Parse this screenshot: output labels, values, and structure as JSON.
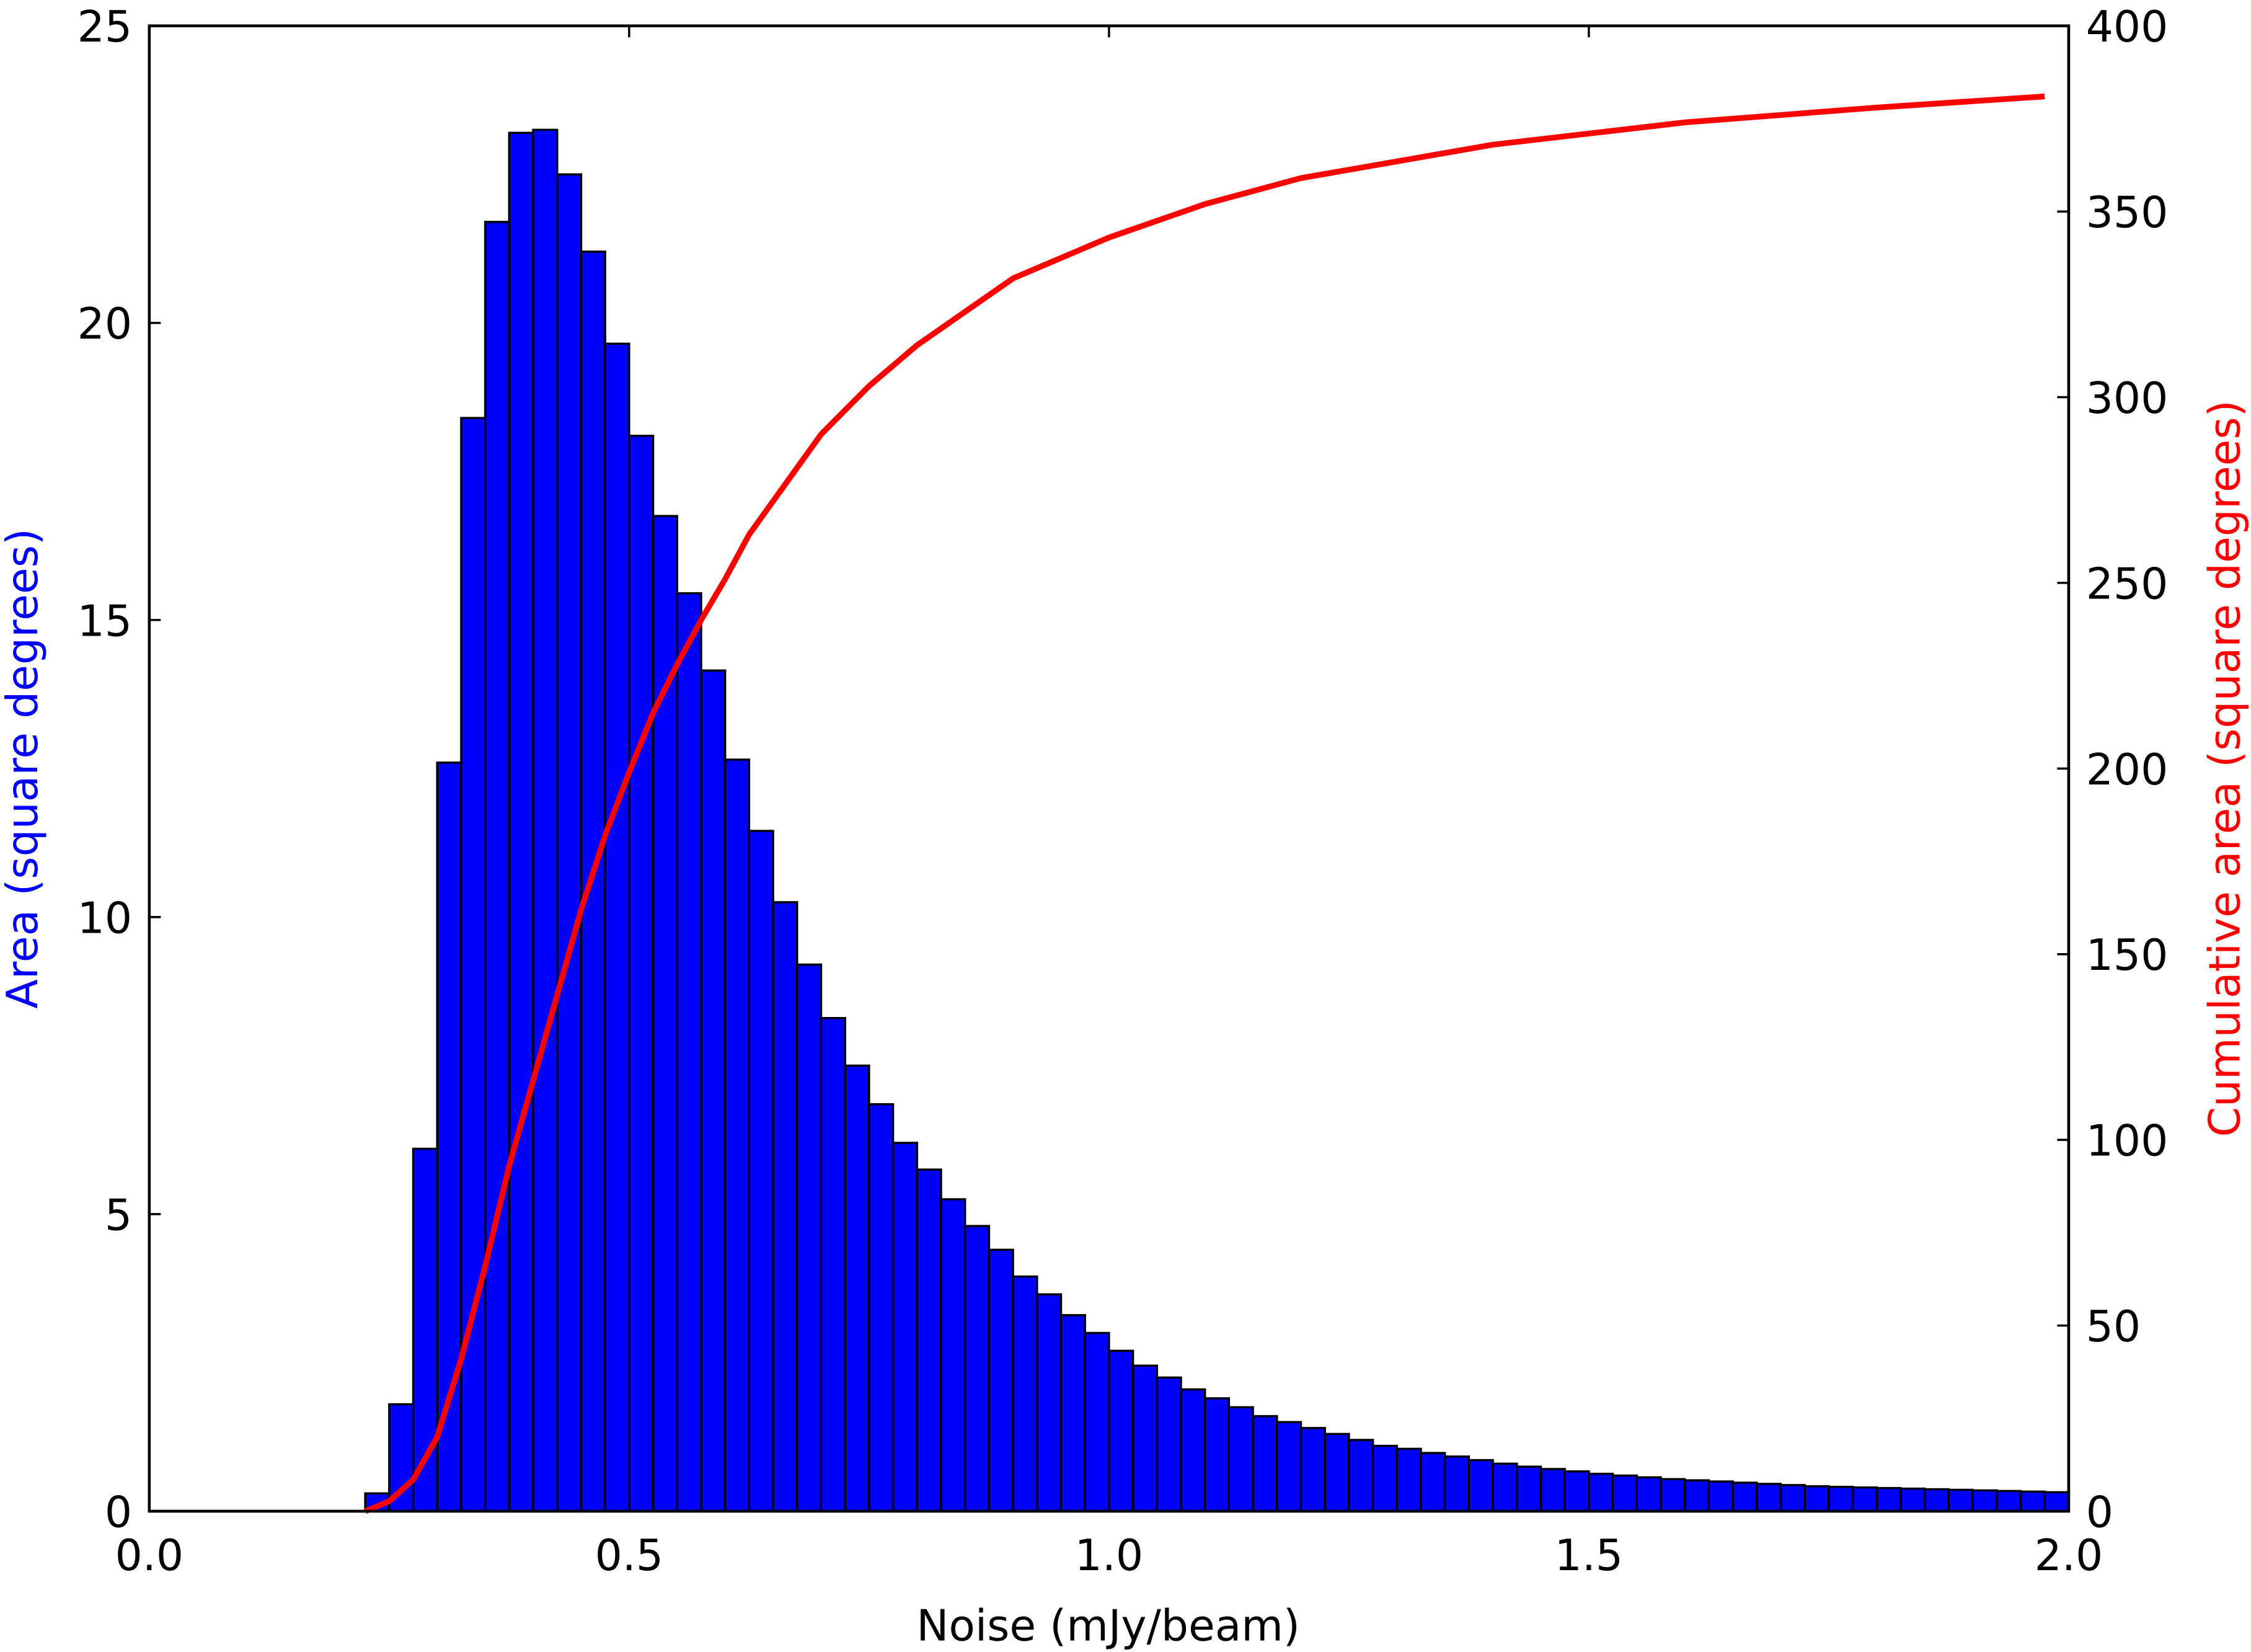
{
  "chart_data": {
    "type": "histogram",
    "xlabel": "Noise (mJy/beam)",
    "ylabel": "Area (square degrees)",
    "y2label": "Cumulative area (square degrees)",
    "bins": [
      0,
      0.025,
      0.05,
      0.075,
      0.1,
      0.125,
      0.15,
      0.175,
      0.2,
      0.225,
      0.25,
      0.275,
      0.3,
      0.325,
      0.35,
      0.375,
      0.4,
      0.425,
      0.45,
      0.475,
      0.5,
      0.525,
      0.55,
      0.575,
      0.6,
      0.625,
      0.65,
      0.675,
      0.7,
      0.725,
      0.75,
      0.775,
      0.8,
      0.825,
      0.85,
      0.875,
      0.9,
      0.925,
      0.95,
      0.975,
      1.0,
      1.025,
      1.05,
      1.075,
      1.1,
      1.125,
      1.15,
      1.175,
      1.2,
      1.225,
      1.25,
      1.275,
      1.3,
      1.325,
      1.35,
      1.375,
      1.4,
      1.425,
      1.45,
      1.475,
      1.5,
      1.525,
      1.55,
      1.575,
      1.6,
      1.625,
      1.65,
      1.675,
      1.7,
      1.725,
      1.75,
      1.775,
      1.8,
      1.825,
      1.85,
      1.875,
      1.9,
      1.925,
      1.95,
      1.975,
      2.0
    ],
    "values": [
      0,
      0,
      0,
      0,
      0,
      0,
      0,
      0,
      0,
      0.3,
      1.8,
      6.1,
      12.6,
      18.4,
      21.7,
      23.2,
      23.25,
      22.5,
      21.2,
      19.65,
      18.1,
      16.75,
      15.45,
      14.15,
      12.65,
      11.45,
      10.25,
      9.2,
      8.3,
      7.5,
      6.85,
      6.2,
      5.75,
      5.25,
      4.8,
      4.4,
      3.95,
      3.65,
      3.3,
      3.0,
      2.7,
      2.45,
      2.25,
      2.05,
      1.9,
      1.75,
      1.6,
      1.5,
      1.4,
      1.3,
      1.2,
      1.1,
      1.05,
      0.98,
      0.92,
      0.86,
      0.8,
      0.75,
      0.71,
      0.67,
      0.63,
      0.6,
      0.57,
      0.54,
      0.52,
      0.5,
      0.48,
      0.46,
      0.44,
      0.42,
      0.41,
      0.4,
      0.39,
      0.38,
      0.37,
      0.36,
      0.35,
      0.34,
      0.33,
      0.32
    ],
    "color": "#0000ff",
    "line": {
      "color": "#ff0000",
      "axis": "y2",
      "x": [
        0.225,
        0.25,
        0.275,
        0.3,
        0.325,
        0.35,
        0.375,
        0.4,
        0.425,
        0.45,
        0.475,
        0.5,
        0.525,
        0.55,
        0.575,
        0.6,
        0.625,
        0.65,
        0.7,
        0.75,
        0.8,
        0.9,
        1.0,
        1.1,
        1.2,
        1.4,
        1.6,
        1.8,
        1.975
      ],
      "values": [
        0,
        2.7,
        8.5,
        20,
        41,
        66,
        93,
        116,
        139,
        162,
        182,
        199,
        215,
        228,
        240,
        251,
        263,
        272,
        290,
        303,
        314,
        332,
        343,
        352,
        359,
        368,
        374,
        378,
        381
      ]
    },
    "xlim": [
      0,
      2.0
    ],
    "xticks": [
      {
        "value": 0,
        "label": "0.0"
      },
      0.5,
      {
        "value": 1,
        "label": "1.0"
      },
      1.5,
      {
        "value": 2,
        "label": "2.0"
      }
    ],
    "ylim": [
      0,
      25
    ],
    "yticks": [
      0,
      5,
      10,
      15,
      20,
      25
    ],
    "y2lim": [
      0,
      400
    ],
    "y2ticks": [
      0,
      50,
      100,
      150,
      200,
      250,
      300,
      350,
      400
    ]
  }
}
